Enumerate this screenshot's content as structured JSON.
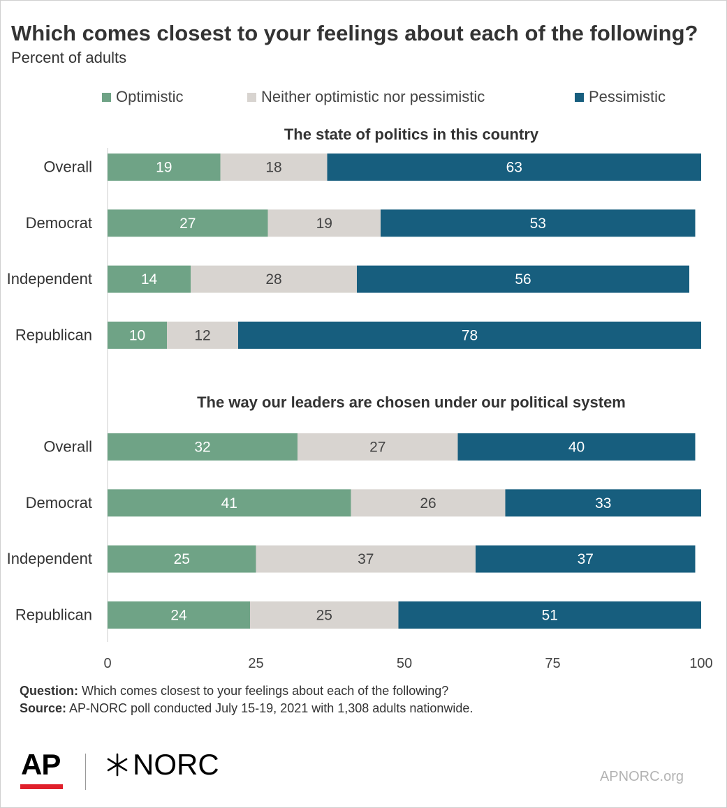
{
  "title": "Which comes closest to your feelings about each of the following?",
  "subtitle": "Percent of adults",
  "colors": {
    "optimistic": "#6fa386",
    "neither": "#d8d4d0",
    "pessimistic": "#175e7e",
    "axis": "#cccccc",
    "text": "#333333"
  },
  "legend": [
    "Optimistic",
    "Neither optimistic nor pessimistic",
    "Pessimistic"
  ],
  "chart_data": {
    "type": "bar",
    "orientation": "horizontal",
    "stacked": true,
    "xlim": [
      0,
      100
    ],
    "xticks": [
      0,
      25,
      50,
      75,
      100
    ],
    "series_names": [
      "Optimistic",
      "Neither optimistic nor pessimistic",
      "Pessimistic"
    ],
    "groups": [
      {
        "title": "The state of politics in this country",
        "rows": [
          {
            "label": "Overall",
            "values": [
              19,
              18,
              63
            ]
          },
          {
            "label": "Democrat",
            "values": [
              27,
              19,
              53
            ]
          },
          {
            "label": "Independent",
            "values": [
              14,
              28,
              56
            ]
          },
          {
            "label": "Republican",
            "values": [
              10,
              12,
              78
            ]
          }
        ]
      },
      {
        "title": "The way our leaders are chosen under our political system",
        "rows": [
          {
            "label": "Overall",
            "values": [
              32,
              27,
              40
            ]
          },
          {
            "label": "Democrat",
            "values": [
              41,
              26,
              33
            ]
          },
          {
            "label": "Independent",
            "values": [
              25,
              37,
              37
            ]
          },
          {
            "label": "Republican",
            "values": [
              24,
              25,
              51
            ]
          }
        ]
      }
    ]
  },
  "footer": {
    "question_label": "Question:",
    "question_text": "Which comes closest to your feelings about each of the following?",
    "source_label": "Source:",
    "source_text": "AP-NORC poll conducted July 15-19, 2021 with 1,308 adults nationwide."
  },
  "logos": {
    "ap": "AP",
    "norc": "NORC",
    "site": "APNORC.org"
  }
}
